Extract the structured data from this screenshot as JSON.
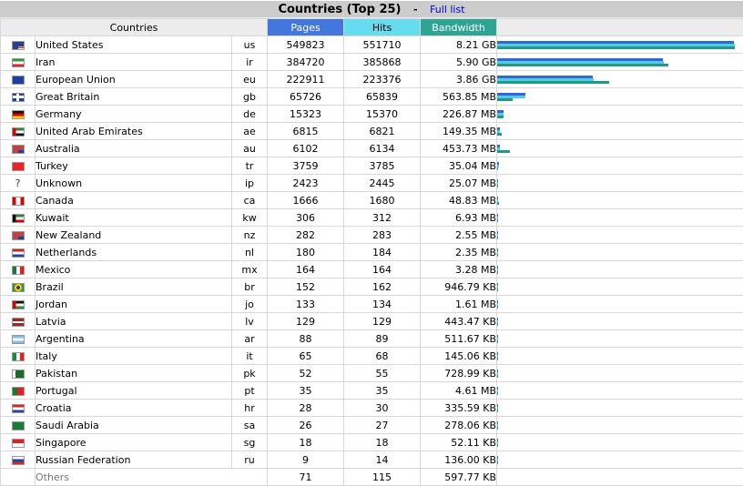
{
  "header": {
    "title": "Countries (Top 25)",
    "separator": "-",
    "link": "Full list"
  },
  "columns": {
    "countries": "Countries",
    "pages": "Pages",
    "hits": "Hits",
    "bandwidth": "Bandwidth"
  },
  "colors": {
    "pages": "#4477dd",
    "hits": "#66ddee",
    "bandwidth": "#2ea495"
  },
  "rows": [
    {
      "flag": "us-flag-icon",
      "country": "United States",
      "code": "us",
      "pages": "549823",
      "hits": "551710",
      "bandwidth": "8.21 GB",
      "bw_value": 8.21
    },
    {
      "flag": "ir-flag-icon",
      "country": "Iran",
      "code": "ir",
      "pages": "384720",
      "hits": "385868",
      "bandwidth": "5.90 GB",
      "bw_value": 5.9
    },
    {
      "flag": "eu-flag-icon",
      "country": "European Union",
      "code": "eu",
      "pages": "222911",
      "hits": "223376",
      "bandwidth": "3.86 GB",
      "bw_value": 3.86
    },
    {
      "flag": "gb-flag-icon",
      "country": "Great Britain",
      "code": "gb",
      "pages": "65726",
      "hits": "65839",
      "bandwidth": "563.85 MB",
      "bw_value": 0.55
    },
    {
      "flag": "de-flag-icon",
      "country": "Germany",
      "code": "de",
      "pages": "15323",
      "hits": "15370",
      "bandwidth": "226.87 MB",
      "bw_value": 0.22
    },
    {
      "flag": "ae-flag-icon",
      "country": "United Arab Emirates",
      "code": "ae",
      "pages": "6815",
      "hits": "6821",
      "bandwidth": "149.35 MB",
      "bw_value": 0.146
    },
    {
      "flag": "au-flag-icon",
      "country": "Australia",
      "code": "au",
      "pages": "6102",
      "hits": "6134",
      "bandwidth": "453.73 MB",
      "bw_value": 0.443
    },
    {
      "flag": "tr-flag-icon",
      "country": "Turkey",
      "code": "tr",
      "pages": "3759",
      "hits": "3785",
      "bandwidth": "35.04 MB",
      "bw_value": 0.034
    },
    {
      "flag": "unknown-icon",
      "country": "Unknown",
      "code": "ip",
      "pages": "2423",
      "hits": "2445",
      "bandwidth": "25.07 MB",
      "bw_value": 0.024
    },
    {
      "flag": "ca-flag-icon",
      "country": "Canada",
      "code": "ca",
      "pages": "1666",
      "hits": "1680",
      "bandwidth": "48.83 MB",
      "bw_value": 0.048
    },
    {
      "flag": "kw-flag-icon",
      "country": "Kuwait",
      "code": "kw",
      "pages": "306",
      "hits": "312",
      "bandwidth": "6.93 MB",
      "bw_value": 0.0068
    },
    {
      "flag": "nz-flag-icon",
      "country": "New Zealand",
      "code": "nz",
      "pages": "282",
      "hits": "283",
      "bandwidth": "2.55 MB",
      "bw_value": 0.0025
    },
    {
      "flag": "nl-flag-icon",
      "country": "Netherlands",
      "code": "nl",
      "pages": "180",
      "hits": "184",
      "bandwidth": "2.35 MB",
      "bw_value": 0.0023
    },
    {
      "flag": "mx-flag-icon",
      "country": "Mexico",
      "code": "mx",
      "pages": "164",
      "hits": "164",
      "bandwidth": "3.28 MB",
      "bw_value": 0.0032
    },
    {
      "flag": "br-flag-icon",
      "country": "Brazil",
      "code": "br",
      "pages": "152",
      "hits": "162",
      "bandwidth": "946.79 KB",
      "bw_value": 0.0009
    },
    {
      "flag": "jo-flag-icon",
      "country": "Jordan",
      "code": "jo",
      "pages": "133",
      "hits": "134",
      "bandwidth": "1.61 MB",
      "bw_value": 0.0016
    },
    {
      "flag": "lv-flag-icon",
      "country": "Latvia",
      "code": "lv",
      "pages": "129",
      "hits": "129",
      "bandwidth": "443.47 KB",
      "bw_value": 0.0004
    },
    {
      "flag": "ar-flag-icon",
      "country": "Argentina",
      "code": "ar",
      "pages": "88",
      "hits": "89",
      "bandwidth": "511.67 KB",
      "bw_value": 0.0005
    },
    {
      "flag": "it-flag-icon",
      "country": "Italy",
      "code": "it",
      "pages": "65",
      "hits": "68",
      "bandwidth": "145.06 KB",
      "bw_value": 0.0001
    },
    {
      "flag": "pk-flag-icon",
      "country": "Pakistan",
      "code": "pk",
      "pages": "52",
      "hits": "55",
      "bandwidth": "728.99 KB",
      "bw_value": 0.0007
    },
    {
      "flag": "pt-flag-icon",
      "country": "Portugal",
      "code": "pt",
      "pages": "35",
      "hits": "35",
      "bandwidth": "4.61 MB",
      "bw_value": 0.0045
    },
    {
      "flag": "hr-flag-icon",
      "country": "Croatia",
      "code": "hr",
      "pages": "28",
      "hits": "30",
      "bandwidth": "335.59 KB",
      "bw_value": 0.0003
    },
    {
      "flag": "sa-flag-icon",
      "country": "Saudi Arabia",
      "code": "sa",
      "pages": "26",
      "hits": "27",
      "bandwidth": "278.06 KB",
      "bw_value": 0.0003
    },
    {
      "flag": "sg-flag-icon",
      "country": "Singapore",
      "code": "sg",
      "pages": "18",
      "hits": "18",
      "bandwidth": "52.11 KB",
      "bw_value": 5e-05
    },
    {
      "flag": "ru-flag-icon",
      "country": "Russian Federation",
      "code": "ru",
      "pages": "9",
      "hits": "14",
      "bandwidth": "136.00 KB",
      "bw_value": 0.0001
    }
  ],
  "others": {
    "label": "Others",
    "pages": "71",
    "hits": "115",
    "bandwidth": "597.77 KB"
  }
}
